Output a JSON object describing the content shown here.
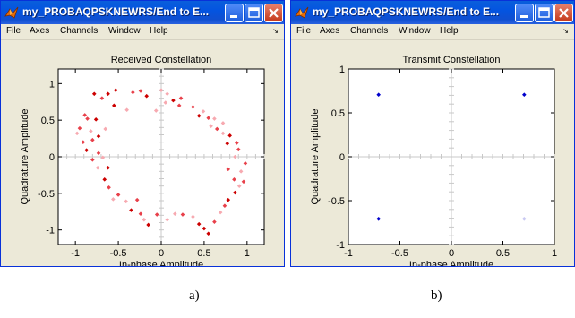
{
  "windows": [
    {
      "title": "my_PROBAQPSKNEWRS/End to E...",
      "menu": [
        "File",
        "Axes",
        "Channels",
        "Window",
        "Help"
      ],
      "chart_data": {
        "type": "scatter",
        "title": "Received Constellation",
        "xlabel": "In-phase Amplitude",
        "ylabel": "Quadrature Amplitude",
        "xlim": [
          -1.2,
          1.2
        ],
        "ylim": [
          -1.2,
          1.2
        ],
        "xticks": [
          -1,
          -0.5,
          0,
          0.5,
          1
        ],
        "xtick_labels": [
          "-1",
          "-0.5",
          "0",
          "0.5",
          "1"
        ],
        "yticks": [
          -1,
          -0.5,
          0,
          0.5,
          1
        ],
        "ytick_labels": [
          "-1",
          "-0.5",
          "0",
          "0.5",
          "1"
        ],
        "grid": "center-crosshair",
        "colors": [
          "#cc0000",
          "#e8404a",
          "#f7a9b0"
        ],
        "points": [
          [
            -0.78,
            0.86,
            0
          ],
          [
            -0.69,
            0.8,
            1
          ],
          [
            -0.62,
            0.86,
            0
          ],
          [
            -0.55,
            0.7,
            0
          ],
          [
            -0.53,
            0.91,
            0
          ],
          [
            -0.4,
            0.64,
            2
          ],
          [
            -0.33,
            0.88,
            1
          ],
          [
            -0.24,
            0.9,
            1
          ],
          [
            -0.17,
            0.83,
            0
          ],
          [
            -0.06,
            0.63,
            2
          ],
          [
            -0.89,
            0.57,
            1
          ],
          [
            -0.86,
            0.52,
            1
          ],
          [
            -0.76,
            0.51,
            0
          ],
          [
            -0.65,
            0.38,
            2
          ],
          [
            -0.73,
            0.28,
            0
          ],
          [
            -0.82,
            0.35,
            2
          ],
          [
            -0.95,
            0.39,
            1
          ],
          [
            -0.98,
            0.32,
            2
          ],
          [
            -0.91,
            0.2,
            1
          ],
          [
            -0.8,
            0.23,
            1
          ],
          [
            -0.87,
            0.09,
            0
          ],
          [
            -0.73,
            0.05,
            1
          ],
          [
            -0.68,
            -0.01,
            2
          ],
          [
            -0.8,
            -0.04,
            1
          ],
          [
            -0.62,
            -0.15,
            0
          ],
          [
            -0.74,
            -0.15,
            2
          ],
          [
            -0.66,
            -0.31,
            0
          ],
          [
            -0.61,
            -0.42,
            1
          ],
          [
            -0.5,
            -0.52,
            1
          ],
          [
            -0.56,
            -0.58,
            2
          ],
          [
            -0.41,
            -0.61,
            2
          ],
          [
            -0.35,
            -0.73,
            0
          ],
          [
            -0.28,
            -0.59,
            1
          ],
          [
            -0.24,
            -0.78,
            1
          ],
          [
            -0.2,
            -0.86,
            2
          ],
          [
            -0.15,
            -0.93,
            0
          ],
          [
            -0.05,
            -0.79,
            1
          ],
          [
            0.07,
            -0.86,
            2
          ],
          [
            0.16,
            -0.78,
            2
          ],
          [
            0.25,
            -0.79,
            1
          ],
          [
            0.37,
            -0.82,
            2
          ],
          [
            0.44,
            -0.92,
            0
          ],
          [
            0.5,
            -0.98,
            0
          ],
          [
            0.55,
            -1.05,
            0
          ],
          [
            0.62,
            -0.89,
            1
          ],
          [
            0.69,
            -0.76,
            2
          ],
          [
            0.74,
            -0.67,
            1
          ],
          [
            0.78,
            -0.59,
            0
          ],
          [
            0.86,
            -0.49,
            0
          ],
          [
            0.91,
            -0.4,
            2
          ],
          [
            0.96,
            -0.34,
            1
          ],
          [
            0.85,
            -0.31,
            1
          ],
          [
            0.93,
            -0.2,
            2
          ],
          [
            0.78,
            -0.17,
            1
          ],
          [
            0.98,
            -0.09,
            1
          ],
          [
            0.86,
            0.0,
            2
          ],
          [
            0.88,
            0.19,
            1
          ],
          [
            0.77,
            0.18,
            0
          ],
          [
            0.72,
            0.32,
            2
          ],
          [
            0.72,
            0.46,
            2
          ],
          [
            0.62,
            0.52,
            2
          ],
          [
            0.55,
            0.53,
            1
          ],
          [
            0.49,
            0.62,
            2
          ],
          [
            0.37,
            0.68,
            1
          ],
          [
            0.23,
            0.8,
            1
          ],
          [
            0.14,
            0.77,
            0
          ],
          [
            0.07,
            0.86,
            2
          ],
          [
            0.0,
            0.91,
            2
          ],
          [
            0.21,
            0.7,
            1
          ],
          [
            0.05,
            0.74,
            2
          ],
          [
            0.44,
            0.56,
            0
          ],
          [
            0.58,
            0.42,
            2
          ],
          [
            0.65,
            0.38,
            1
          ],
          [
            0.8,
            0.29,
            0
          ],
          [
            0.9,
            0.1,
            1
          ]
        ]
      }
    },
    {
      "title": "my_PROBAQPSKNEWRS/End to E...",
      "menu": [
        "File",
        "Axes",
        "Channels",
        "Window",
        "Help"
      ],
      "chart_data": {
        "type": "scatter",
        "title": "Transmit Constellation",
        "xlabel": "In-phase Amplitude",
        "ylabel": "Quadrature Amplitude",
        "xlim": [
          -1,
          1
        ],
        "ylim": [
          -1,
          1
        ],
        "xticks": [
          -1,
          -0.5,
          0,
          0.5,
          1
        ],
        "xtick_labels": [
          "-1",
          "-0.5",
          "0",
          "0.5",
          "1"
        ],
        "yticks": [
          -1,
          -0.5,
          0,
          0.5,
          1
        ],
        "ytick_labels": [
          "-1",
          "-0.5",
          "0",
          "0.5",
          "1"
        ],
        "grid": "center-crosshair",
        "colors": [
          "#0000cc",
          "#c9c9f2"
        ],
        "points": [
          [
            -0.707,
            0.707,
            0
          ],
          [
            0.707,
            0.707,
            0
          ],
          [
            -0.707,
            -0.707,
            0
          ],
          [
            0.707,
            -0.707,
            1
          ]
        ]
      }
    }
  ],
  "captions": [
    "a)",
    "b)"
  ]
}
